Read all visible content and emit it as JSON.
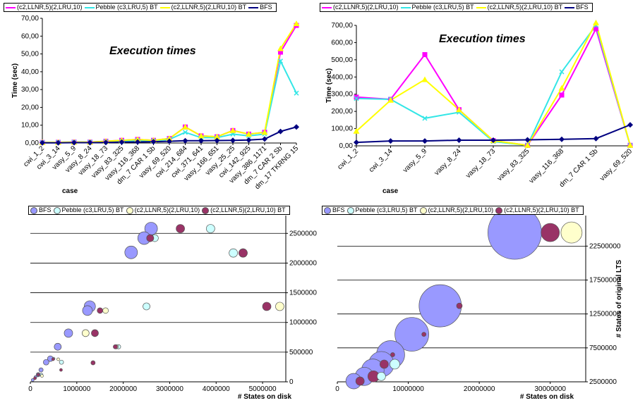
{
  "chart_data": [
    {
      "type": "line",
      "title": "Execution times",
      "xlabel": "case",
      "ylabel": "Time (sec)",
      "ylim": [
        0,
        70
      ],
      "yticks": [
        "0,00",
        "10,00",
        "20,00",
        "30,00",
        "40,00",
        "50,00",
        "60,00",
        "70,00"
      ],
      "legend_position": "top",
      "categories": [
        "cwi_1_2",
        "cwi_3_14",
        "vasy_5_9",
        "vasy_8_24",
        "vasy_18_73",
        "vasy_83_325",
        "vasy_116_368",
        "dm_7 CAR 1 Sb",
        "vasy_69_520",
        "cwi_214_684",
        "cwi_371_641",
        "vasy_166_651",
        "vasy_25_25",
        "cwi_142_925",
        "vasy_386_1171",
        "dm_7 CAR 2 Sb",
        "dm_17 TKRNG 15"
      ],
      "series": [
        {
          "name": "(c2,LLNR,5)(2,LRU,10)",
          "color": "#ff00ff",
          "marker": "square",
          "values": [
            0.3,
            0.4,
            0.5,
            0.5,
            1.0,
            1.5,
            2.0,
            1.5,
            2.5,
            9.0,
            4.0,
            3.5,
            7.0,
            5.0,
            6.0,
            51.0,
            66.0
          ]
        },
        {
          "name": "Pebble (c3,LRU,5) BT",
          "color": "#33e6e6",
          "marker": "x",
          "values": [
            0.3,
            0.4,
            0.5,
            0.5,
            0.8,
            1.0,
            1.5,
            1.2,
            2.0,
            6.0,
            3.0,
            3.0,
            5.0,
            4.0,
            5.0,
            46.0,
            28.0
          ]
        },
        {
          "name": "(c2,LLNR,5)(2,LRU,10) BT",
          "color": "#ffff00",
          "marker": "triangle",
          "values": [
            0.3,
            0.4,
            0.5,
            0.5,
            1.0,
            1.5,
            2.0,
            1.5,
            2.5,
            9.0,
            4.0,
            3.5,
            7.0,
            5.0,
            6.0,
            53.0,
            67.0
          ]
        },
        {
          "name": "BFS",
          "color": "#000080",
          "marker": "diamond",
          "values": [
            0.1,
            0.1,
            0.2,
            0.2,
            0.3,
            0.5,
            0.6,
            0.7,
            1.0,
            1.3,
            1.3,
            1.4,
            1.5,
            1.7,
            2.2,
            6.5,
            9.0
          ]
        }
      ]
    },
    {
      "type": "line",
      "title": "Execution times",
      "xlabel": "case",
      "ylabel": "Time (sec)",
      "ylim": [
        0,
        700
      ],
      "yticks": [
        "0,00",
        "100,00",
        "200,00",
        "300,00",
        "400,00",
        "500,00",
        "600,00",
        "700,00"
      ],
      "legend_position": "top",
      "categories": [
        "cwi_1_2",
        "cwi_3_14",
        "vasy_5_9",
        "vasy_8_24",
        "vasy_18_73",
        "vasy_83_325",
        "vasy_116_368",
        "dm_7 CAR 1 Sb",
        "vasy_69_520"
      ],
      "series": [
        {
          "name": "(c2,LLNR,5)(2,LRU,10)",
          "color": "#ff00ff",
          "marker": "square",
          "values": [
            283,
            270,
            530,
            210,
            30,
            3,
            295,
            680,
            3
          ]
        },
        {
          "name": "Pebble (c3,LRU,5) BT",
          "color": "#33e6e6",
          "marker": "x",
          "values": [
            275,
            270,
            160,
            195,
            25,
            3,
            430,
            700,
            2
          ]
        },
        {
          "name": "(c2,LLNR,5)(2,LRU,10) BT",
          "color": "#ffff00",
          "marker": "triangle",
          "values": [
            85,
            265,
            385,
            210,
            30,
            3,
            335,
            715,
            3
          ]
        },
        {
          "name": "BFS",
          "color": "#000080",
          "marker": "diamond",
          "values": [
            20,
            28,
            28,
            33,
            33,
            35,
            38,
            42,
            122
          ]
        }
      ]
    },
    {
      "type": "scatter",
      "subtype": "bubble",
      "xlabel": "# States on disk",
      "ylabel": "",
      "xlim": [
        0,
        5500000
      ],
      "ylim": [
        0,
        2800000
      ],
      "xticks": [
        "0",
        "1000000",
        "2000000",
        "3000000",
        "4000000",
        "5000000"
      ],
      "yticks": [
        "0",
        "500000",
        "1000000",
        "1500000",
        "2000000",
        "2500000"
      ],
      "legend_position": "top",
      "series": [
        {
          "name": "BFS",
          "color": "#9999ff",
          "points": [
            [
              2600000,
              2580000,
              9
            ],
            [
              2450000,
              2420000,
              9
            ],
            [
              2170000,
              2180000,
              9
            ],
            [
              1280000,
              1270000,
              8
            ],
            [
              1230000,
              1200000,
              7
            ],
            [
              820000,
              820000,
              6
            ],
            [
              590000,
              590000,
              5
            ],
            [
              430000,
              390000,
              4
            ],
            [
              340000,
              330000,
              4
            ],
            [
              230000,
              200000,
              3
            ],
            [
              170000,
              120000,
              3
            ],
            [
              110000,
              80000,
              2
            ],
            [
              50000,
              30000,
              2
            ]
          ]
        },
        {
          "name": "Pebble (c3,LRU,5) BT",
          "color": "#ccffff",
          "points": [
            [
              3880000,
              2580000,
              6
            ],
            [
              2680000,
              2420000,
              5
            ],
            [
              4370000,
              2170000,
              6
            ],
            [
              2500000,
              1270000,
              5
            ],
            [
              1900000,
              590000,
              3
            ],
            [
              670000,
              330000,
              3
            ],
            [
              500000,
              390000,
              2
            ],
            [
              240000,
              120000,
              2
            ]
          ]
        },
        {
          "name": "(c2,LLNR,5)(2,LRU,10)",
          "color": "#ffffcc",
          "points": [
            [
              2580000,
              2420000,
              5
            ],
            [
              4580000,
              2170000,
              6
            ],
            [
              5370000,
              1270000,
              6
            ],
            [
              1620000,
              1200000,
              4
            ],
            [
              1190000,
              820000,
              5
            ],
            [
              1850000,
              590000,
              3
            ],
            [
              600000,
              380000,
              2
            ],
            [
              250000,
              100000,
              2
            ]
          ]
        },
        {
          "name": "(c2,LLNR,5)(2,LRU,10) BT",
          "color": "#993366",
          "points": [
            [
              3230000,
              2580000,
              6
            ],
            [
              2580000,
              2420000,
              5
            ],
            [
              4580000,
              2170000,
              6
            ],
            [
              5090000,
              1270000,
              6
            ],
            [
              1500000,
              1200000,
              4
            ],
            [
              1390000,
              820000,
              5
            ],
            [
              1830000,
              590000,
              3
            ],
            [
              1350000,
              320000,
              3
            ],
            [
              660000,
              200000,
              2
            ],
            [
              490000,
              380000,
              2
            ],
            [
              170000,
              120000,
              2
            ],
            [
              100000,
              60000,
              2
            ]
          ]
        }
      ]
    },
    {
      "type": "scatter",
      "subtype": "bubble",
      "xlabel": "# States on disk",
      "ylabel": "# States of original LTS",
      "xlim": [
        0,
        35000000
      ],
      "ylim": [
        2500000,
        27000000
      ],
      "xticks": [
        "0",
        "10000000",
        "20000000",
        "30000000"
      ],
      "yticks": [
        "2500000",
        "7500000",
        "12500000",
        "17500000",
        "22500000"
      ],
      "legend_position": "top",
      "series": [
        {
          "name": "BFS",
          "color": "#9999ff",
          "points": [
            [
              25000000,
              24500000,
              38
            ],
            [
              14500000,
              13700000,
              30
            ],
            [
              10500000,
              9500000,
              24
            ],
            [
              7500000,
              6500000,
              20
            ],
            [
              6200000,
              5100000,
              18
            ],
            [
              5000000,
              4200000,
              16
            ],
            [
              3800000,
              3300000,
              13
            ],
            [
              2300000,
              2600000,
              11
            ]
          ]
        },
        {
          "name": "Pebble (c3,LRU,5) BT",
          "color": "#ccffff",
          "points": [
            [
              8100000,
              5100000,
              7
            ],
            [
              6200000,
              3300000,
              6
            ]
          ]
        },
        {
          "name": "(c2,LLNR,5)(2,LRU,10)",
          "color": "#ffffcc",
          "points": [
            [
              33000000,
              24500000,
              15
            ]
          ]
        },
        {
          "name": "(c2,LLNR,5)(2,LRU,10) BT",
          "color": "#993366",
          "points": [
            [
              30000000,
              24500000,
              13
            ],
            [
              17200000,
              13700000,
              4
            ],
            [
              12200000,
              9500000,
              3
            ],
            [
              7800000,
              6500000,
              3
            ],
            [
              6600000,
              5100000,
              6
            ],
            [
              5100000,
              3300000,
              8
            ],
            [
              3200000,
              2600000,
              6
            ]
          ]
        }
      ]
    }
  ]
}
